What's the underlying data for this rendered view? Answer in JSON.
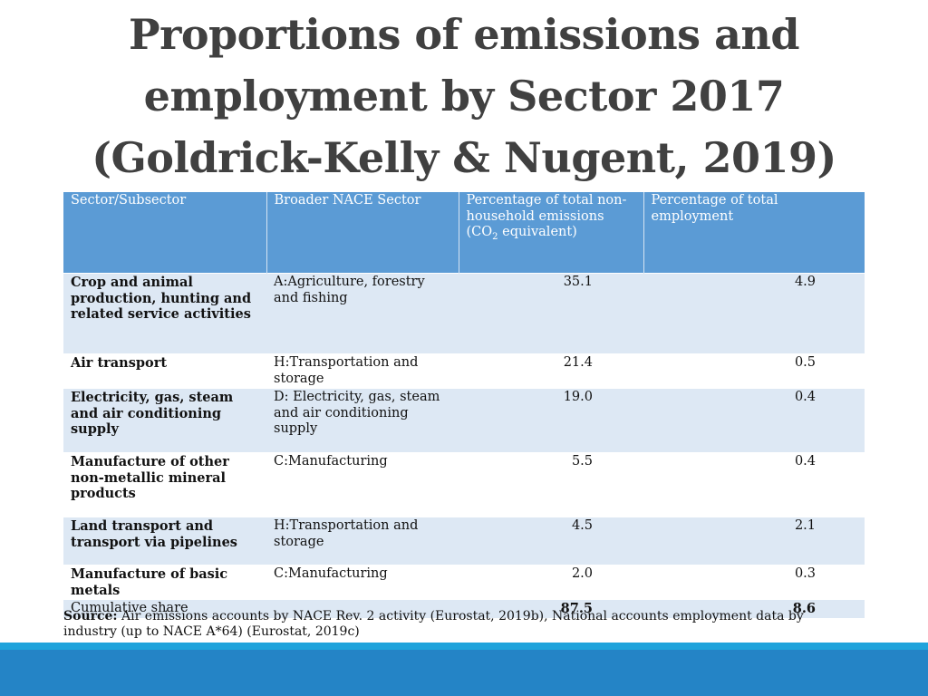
{
  "title": {
    "line1": "Proportions of emissions and",
    "line2": "employment by Sector 2017",
    "line3": "(Goldrick-Kelly & Nugent, 2019)"
  },
  "table": {
    "headers": {
      "sector": "Sector/Subsector",
      "nace": "Broader NACE Sector",
      "emissions_main": "Percentage of total non-household emissions (CO",
      "emissions_sub": "2",
      "emissions_end": " equivalent)",
      "employment": "Percentage of total employment"
    },
    "rows": [
      {
        "sector": "Crop and animal production, hunting and related service activities",
        "nace": "A:Agriculture, forestry and fishing",
        "emissions": "35.1",
        "employment": "4.9"
      },
      {
        "sector": "Air transport",
        "nace": "H:Transportation and storage",
        "emissions": "21.4",
        "employment": "0.5"
      },
      {
        "sector": "Electricity, gas, steam and air conditioning supply",
        "nace": "D: Electricity, gas, steam and air conditioning supply",
        "emissions": "19.0",
        "employment": "0.4"
      },
      {
        "sector": "Manufacture of other non-metallic mineral products",
        "nace": "C:Manufacturing",
        "emissions": "5.5",
        "employment": "0.4"
      },
      {
        "sector": "Land transport and transport via pipelines",
        "nace": "H:Transportation and storage",
        "emissions": "4.5",
        "employment": "2.1"
      },
      {
        "sector": "Manufacture of basic metals",
        "nace": "C:Manufacturing",
        "emissions": "2.0",
        "employment": "0.3"
      }
    ],
    "cumulative": {
      "label": "Cumulative share",
      "emissions": "87.5",
      "employment": "8.6"
    }
  },
  "source": {
    "label": "Source:",
    "text": " Air emissions accounts by NACE Rev. 2 activity (Eurostat, 2019b), National accounts employment data by industry (up to NACE A*64) (Eurostat, 2019c)"
  },
  "colors": {
    "header_bg": "#5b9bd5",
    "row_alt_bg": "#dde8f4",
    "band_light": "#1fa3dc",
    "band_dark": "#2484c6",
    "title_text": "#404040"
  }
}
